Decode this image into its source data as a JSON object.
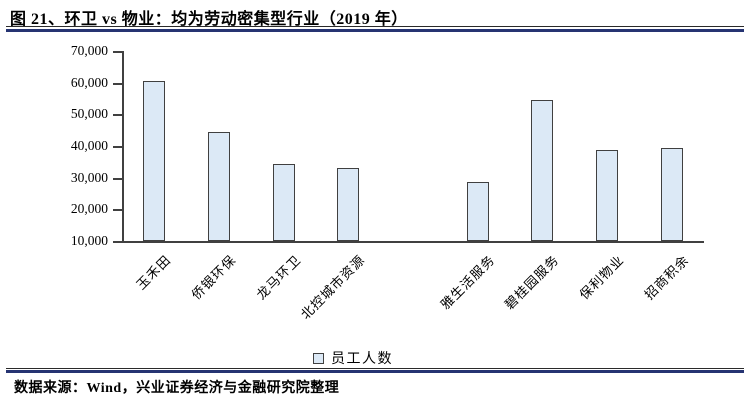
{
  "header": {
    "title": "图 21、环卫 vs 物业：均为劳动密集型行业（2019 年）"
  },
  "footer": {
    "source": "数据来源：Wind，兴业证券经济与金融研究院整理"
  },
  "colors": {
    "accent_navy": "#263472",
    "bar_fill": "#dce9f6",
    "bar_border": "#404040",
    "axis": "#404040"
  },
  "chart_data": {
    "type": "bar",
    "title": "图 21、环卫 vs 物业：均为劳动密集型行业（2019 年）",
    "categories": [
      "玉禾田",
      "侨银环保",
      "龙马环卫",
      "北控城市资源",
      "",
      "雅生活服务",
      "碧桂园服务",
      "保利物业",
      "招商积余"
    ],
    "values": [
      60600,
      44400,
      34300,
      33200,
      null,
      28500,
      54600,
      38700,
      39300
    ],
    "legend": [
      "员工人数"
    ],
    "legend_position": "bottom",
    "xlabel": "",
    "ylabel": "",
    "ylim": [
      10000,
      70000
    ],
    "ytick_step": 10000,
    "ytick_labels": [
      "70,000",
      "60,000",
      "50,000",
      "40,000",
      "30,000",
      "20,000",
      "10,000"
    ],
    "grid": false,
    "gap_note": "empty category slot separates 环卫 companies (first 4) from 物业 companies (last 4)"
  }
}
